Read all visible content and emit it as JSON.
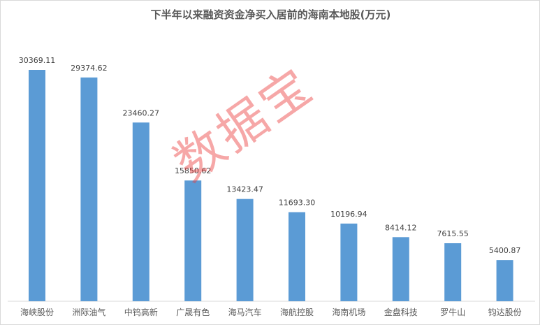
{
  "chart_data": {
    "type": "bar",
    "title": "下半年以来融资资金净买入居前的海南本地股(万元)",
    "categories": [
      "海峡股份",
      "洲际油气",
      "中钨高新",
      "广晟有色",
      "海马汽车",
      "海航控股",
      "海南机场",
      "金盘科技",
      "罗牛山",
      "钧达股份"
    ],
    "values": [
      30369.11,
      29374.62,
      23460.27,
      15850.62,
      13423.47,
      11693.3,
      10196.94,
      8414.12,
      7615.55,
      5400.87
    ],
    "value_labels": [
      "30369.11",
      "29374.62",
      "23460.27",
      "15850.62",
      "13423.47",
      "11693.30",
      "10196.94",
      "8414.12",
      "7615.55",
      "5400.87"
    ],
    "xlabel": "",
    "ylabel": "",
    "ylim": [
      0,
      31000
    ],
    "grid": false,
    "legend": "none",
    "bar_color": "#5b9bd5"
  },
  "watermark": "数据宝"
}
